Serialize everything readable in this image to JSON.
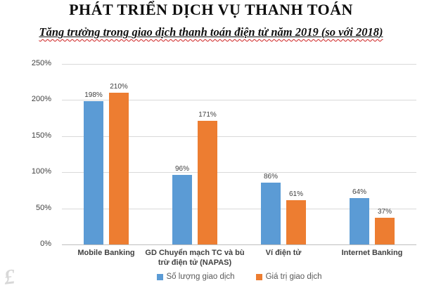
{
  "title": "PHÁT TRIỂN DỊCH VỤ THANH TOÁN",
  "subtitle": "Tăng trưởng trong giao dịch thanh toán điện tử năm 2019 (so với 2018)",
  "watermark_glyph": "£",
  "colors": {
    "series_blue": "#5B9BD5",
    "series_orange": "#ED7D31",
    "gridline": "#D9D9D9",
    "axis_line": "#BFBFBF",
    "subtitle_wavy_underline": "#CF1F1F",
    "label_text": "#404040",
    "legend_text": "#595959"
  },
  "chart_data": {
    "type": "bar",
    "title": "PHÁT TRIỂN DỊCH VỤ THANH TOÁN",
    "subtitle": "Tăng trưởng trong giao dịch thanh toán điện tử năm 2019 (so với 2018)",
    "categories": [
      "Mobile Banking",
      "GD Chuyển mạch TC và bù trừ điện tử (NAPAS)",
      "Ví điện tử",
      "Internet Banking"
    ],
    "series": [
      {
        "name": "Số lượng giao dịch",
        "color": "#5B9BD5",
        "values": [
          198,
          96,
          86,
          64
        ]
      },
      {
        "name": "Giá trị giao dịch",
        "color": "#ED7D31",
        "values": [
          210,
          171,
          61,
          37
        ]
      }
    ],
    "value_suffix": "%",
    "data_labels": true,
    "xlabel": "",
    "ylabel": "",
    "yticks": [
      0,
      50,
      100,
      150,
      200,
      250
    ],
    "ytick_suffix": "%",
    "ylim": [
      0,
      250
    ],
    "grid": true,
    "legend_position": "bottom"
  }
}
